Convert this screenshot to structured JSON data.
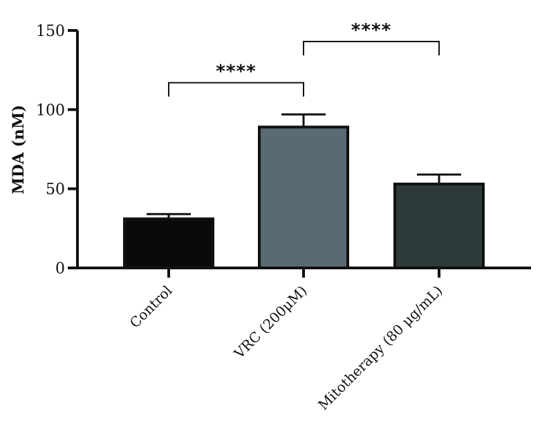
{
  "chart_data": {
    "type": "bar",
    "title": "",
    "xlabel": "",
    "ylabel": "MDA (nM)",
    "ylim": [
      0,
      150
    ],
    "yticks": [
      0,
      50,
      100,
      150
    ],
    "categories": [
      "Control",
      "VRC (200μM)",
      "Mitotherapy (80 μg/mL)"
    ],
    "values": [
      31,
      89,
      53
    ],
    "errors": [
      3,
      8,
      6
    ],
    "colors": [
      "#0a0a0a",
      "#5a6a74",
      "#2e3a3a"
    ],
    "grid": false,
    "legend": "none",
    "significance": [
      {
        "from": 0,
        "to": 1,
        "y": 117,
        "label": "****"
      },
      {
        "from": 1,
        "to": 2,
        "y": 143,
        "label": "****"
      }
    ]
  }
}
